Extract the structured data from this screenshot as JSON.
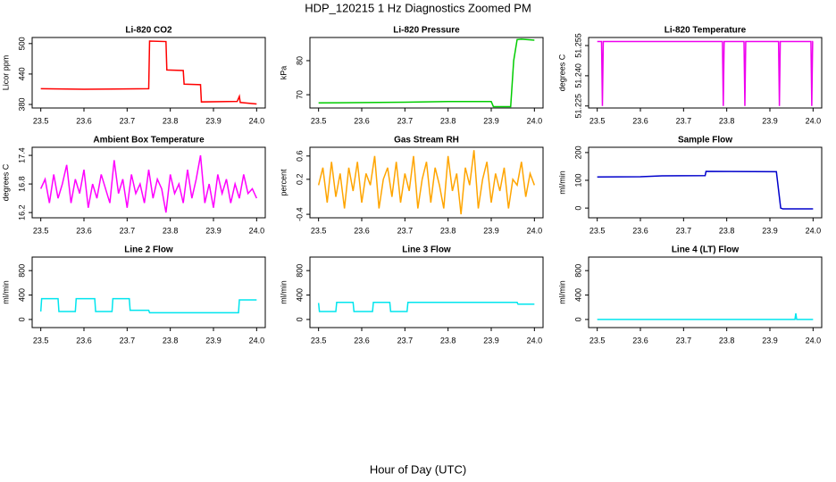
{
  "title": "HDP_120215  1 Hz Diagnostics Zoomed PM",
  "xlabel": "Hour of Day (UTC)",
  "chart_data": [
    {
      "type": "line",
      "title": "Li-820 CO2",
      "ylabel": "Licor ppm",
      "color": "#ff0000",
      "x": [
        23.5,
        23.6,
        23.75,
        23.752,
        23.79,
        23.792,
        23.83,
        23.832,
        23.87,
        23.872,
        23.955,
        23.96,
        23.962,
        24.0
      ],
      "values": [
        411,
        410,
        411,
        505,
        504,
        448,
        447,
        420,
        419,
        385,
        386,
        396,
        384,
        381
      ],
      "xlim": [
        23.48,
        24.02
      ],
      "xticks": [
        23.5,
        23.6,
        23.7,
        23.8,
        23.9,
        {
          "value": 24,
          "label": "24.0"
        }
      ],
      "ylim": [
        373,
        512
      ],
      "yticks": [
        380,
        440,
        500
      ]
    },
    {
      "type": "line",
      "title": "Li-820 Pressure",
      "ylabel": "kPa",
      "color": "#00cc00",
      "x": [
        23.5,
        23.7,
        23.8,
        23.9,
        23.905,
        23.945,
        23.952,
        23.96,
        23.97,
        24.0
      ],
      "values": [
        67.6,
        67.8,
        68.0,
        68.0,
        66.5,
        66.5,
        80,
        86.2,
        86.3,
        86.0
      ],
      "xlim": [
        23.48,
        24.02
      ],
      "xticks": [
        23.5,
        23.6,
        23.7,
        23.8,
        23.9,
        {
          "value": 24,
          "label": "24.0"
        }
      ],
      "ylim": [
        66.1,
        86.8
      ],
      "yticks": [
        70,
        80
      ]
    },
    {
      "type": "line",
      "title": "Li-820 Temperature",
      "ylabel": "degrees C",
      "color": "#ee00ee",
      "x": [
        23.5,
        23.51,
        23.512,
        23.514,
        23.79,
        23.792,
        23.794,
        23.84,
        23.842,
        23.844,
        23.92,
        23.922,
        23.924,
        23.995,
        23.997,
        23.999,
        24.0
      ],
      "values": [
        51.257,
        51.257,
        51.225,
        51.257,
        51.257,
        51.225,
        51.257,
        51.257,
        51.225,
        51.257,
        51.257,
        51.225,
        51.257,
        51.257,
        51.225,
        51.257,
        51.257
      ],
      "xlim": [
        23.48,
        24.02
      ],
      "xticks": [
        23.5,
        23.6,
        23.7,
        23.8,
        23.9,
        {
          "value": 24,
          "label": "24.0"
        }
      ],
      "ylim": [
        51.224,
        51.259
      ],
      "yticks": [
        51.225,
        {
          "value": 51.24,
          "label": "51.240"
        },
        51.255
      ]
    },
    {
      "type": "line",
      "title": "Ambient Box Temperature",
      "ylabel": "degrees C",
      "color": "#ff00ff",
      "x": [
        23.5,
        23.51,
        23.52,
        23.53,
        23.54,
        23.55,
        23.56,
        23.57,
        23.58,
        23.59,
        23.6,
        23.61,
        23.62,
        23.63,
        23.64,
        23.65,
        23.66,
        23.67,
        23.68,
        23.69,
        23.7,
        23.71,
        23.72,
        23.73,
        23.74,
        23.75,
        23.76,
        23.77,
        23.78,
        23.79,
        23.8,
        23.81,
        23.82,
        23.83,
        23.84,
        23.85,
        23.86,
        23.87,
        23.88,
        23.89,
        23.9,
        23.91,
        23.92,
        23.93,
        23.94,
        23.95,
        23.96,
        23.97,
        23.98,
        23.99,
        24.0
      ],
      "values": [
        16.7,
        16.9,
        16.4,
        17.0,
        16.5,
        16.8,
        17.2,
        16.4,
        16.9,
        16.6,
        17.1,
        16.3,
        16.8,
        16.5,
        17.0,
        16.7,
        16.4,
        17.3,
        16.6,
        16.9,
        16.3,
        17.0,
        16.6,
        16.8,
        16.4,
        17.1,
        16.5,
        16.9,
        16.7,
        16.2,
        17.0,
        16.6,
        16.8,
        16.4,
        17.1,
        16.5,
        16.9,
        17.4,
        16.4,
        16.8,
        16.3,
        17.0,
        16.6,
        16.9,
        16.4,
        16.8,
        16.5,
        17.0,
        16.6,
        16.7,
        16.5
      ],
      "xlim": [
        23.48,
        24.02
      ],
      "xticks": [
        23.5,
        23.6,
        23.7,
        23.8,
        23.9,
        {
          "value": 24,
          "label": "24.0"
        }
      ],
      "ylim": [
        16.09,
        17.57
      ],
      "yticks": [
        16.2,
        16.8,
        17.4
      ]
    },
    {
      "type": "line",
      "title": "Gas Stream RH",
      "ylabel": "percent",
      "color": "#ffa500",
      "x": [
        23.5,
        23.51,
        23.52,
        23.53,
        23.54,
        23.55,
        23.56,
        23.57,
        23.58,
        23.59,
        23.6,
        23.61,
        23.62,
        23.63,
        23.64,
        23.65,
        23.66,
        23.67,
        23.68,
        23.69,
        23.7,
        23.71,
        23.72,
        23.73,
        23.74,
        23.75,
        23.76,
        23.77,
        23.78,
        23.79,
        23.8,
        23.81,
        23.82,
        23.83,
        23.84,
        23.85,
        23.86,
        23.87,
        23.88,
        23.89,
        23.9,
        23.91,
        23.92,
        23.93,
        23.94,
        23.95,
        23.96,
        23.97,
        23.98,
        23.99,
        24.0
      ],
      "values": [
        0.1,
        0.4,
        -0.2,
        0.5,
        -0.1,
        0.3,
        -0.3,
        0.4,
        0.0,
        0.5,
        -0.2,
        0.3,
        0.1,
        0.6,
        -0.3,
        0.2,
        0.4,
        -0.1,
        0.5,
        -0.2,
        0.3,
        0.0,
        0.6,
        -0.3,
        0.2,
        0.5,
        -0.2,
        0.4,
        0.1,
        -0.3,
        0.6,
        0.0,
        0.3,
        -0.4,
        0.4,
        0.1,
        0.7,
        -0.3,
        0.2,
        0.5,
        -0.2,
        0.3,
        0.0,
        0.4,
        -0.3,
        0.2,
        0.1,
        0.5,
        -0.1,
        0.3,
        0.1
      ],
      "xlim": [
        23.48,
        24.02
      ],
      "xticks": [
        23.5,
        23.6,
        23.7,
        23.8,
        23.9,
        {
          "value": 24,
          "label": "24.0"
        }
      ],
      "ylim": [
        -0.46,
        0.75
      ],
      "yticks": [
        -0.4,
        0.2,
        0.6
      ]
    },
    {
      "type": "line",
      "title": "Sample Flow",
      "ylabel": "ml/min",
      "color": "#0000cc",
      "x": [
        23.5,
        23.6,
        23.65,
        23.75,
        23.752,
        23.915,
        23.925,
        23.93,
        24.0
      ],
      "values": [
        112,
        113,
        116,
        117,
        132,
        131,
        0,
        -3,
        -3
      ],
      "xlim": [
        23.48,
        24.02
      ],
      "xticks": [
        23.5,
        23.6,
        23.7,
        23.8,
        23.9,
        {
          "value": 24,
          "label": "24.0"
        }
      ],
      "ylim": [
        -35,
        219
      ],
      "yticks": [
        0,
        100,
        200
      ]
    },
    {
      "type": "line",
      "title": "Line 2 Flow",
      "ylabel": "ml/min",
      "color": "#00e5ee",
      "x": [
        23.5,
        23.502,
        23.54,
        23.542,
        23.58,
        23.582,
        23.625,
        23.627,
        23.665,
        23.667,
        23.705,
        23.707,
        23.75,
        23.752,
        23.958,
        23.96,
        24.0
      ],
      "values": [
        130,
        340,
        340,
        130,
        130,
        340,
        340,
        130,
        130,
        340,
        340,
        150,
        150,
        110,
        110,
        320,
        320
      ],
      "xlim": [
        23.48,
        24.02
      ],
      "xticks": [
        23.5,
        23.6,
        23.7,
        23.8,
        23.9,
        {
          "value": 24,
          "label": "24.0"
        }
      ],
      "ylim": [
        -133,
        1022
      ],
      "yticks": [
        0,
        400,
        800
      ]
    },
    {
      "type": "line",
      "title": "Line 3 Flow",
      "ylabel": "ml/min",
      "color": "#00e5ee",
      "x": [
        23.5,
        23.502,
        23.54,
        23.542,
        23.58,
        23.582,
        23.625,
        23.627,
        23.665,
        23.667,
        23.705,
        23.707,
        23.96,
        23.962,
        24.0
      ],
      "values": [
        270,
        130,
        130,
        280,
        280,
        130,
        130,
        280,
        280,
        130,
        130,
        280,
        280,
        250,
        250
      ],
      "xlim": [
        23.48,
        24.02
      ],
      "xticks": [
        23.5,
        23.6,
        23.7,
        23.8,
        23.9,
        {
          "value": 24,
          "label": "24.0"
        }
      ],
      "ylim": [
        -133,
        1022
      ],
      "yticks": [
        0,
        400,
        800
      ]
    },
    {
      "type": "line",
      "title": "Line 4 (LT) Flow",
      "ylabel": "ml/min",
      "color": "#00e5ee",
      "x": [
        23.5,
        23.958,
        23.96,
        23.962,
        24.0
      ],
      "values": [
        0,
        0,
        100,
        0,
        0
      ],
      "xlim": [
        23.48,
        24.02
      ],
      "xticks": [
        23.5,
        23.6,
        23.7,
        23.8,
        23.9,
        {
          "value": 24,
          "label": "24.0"
        }
      ],
      "ylim": [
        -133,
        1022
      ],
      "yticks": [
        0,
        400,
        800
      ]
    }
  ]
}
